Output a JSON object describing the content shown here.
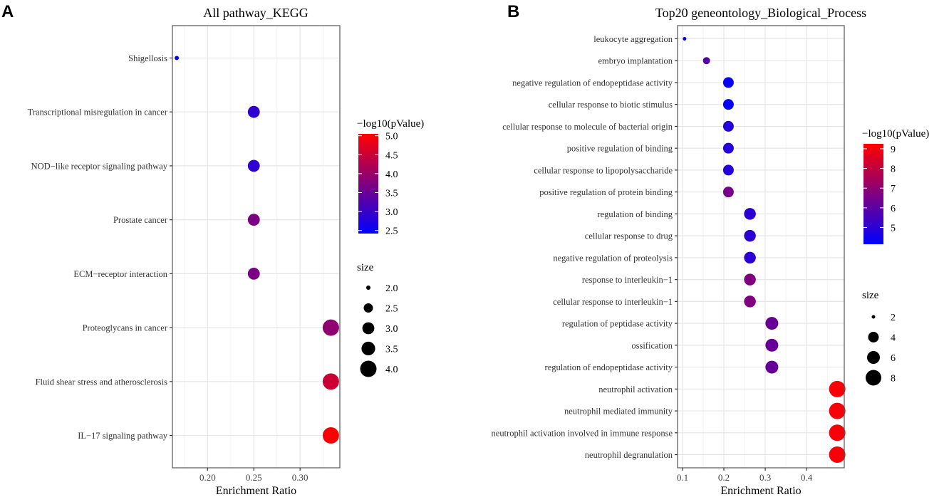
{
  "chart_data": [
    {
      "panel_label": "A",
      "type": "scatter",
      "title": "All pathway_KEGG",
      "xlabel": "Enrichment Ratio",
      "ylabel": "",
      "xlim": [
        0.162,
        0.343
      ],
      "xticks": [
        0.2,
        0.25,
        0.3
      ],
      "xtick_labels": [
        "0.20",
        "0.25",
        "0.30"
      ],
      "grid": true,
      "categories": [
        "Shigellosis",
        "Transcriptional misregulation in cancer",
        "NOD−like receptor signaling pathway",
        "Prostate cancer",
        "ECM−receptor interaction",
        "Proteoglycans in cancer",
        "Fluid shear stress and atherosclerosis",
        "IL−17 signaling pathway"
      ],
      "x": [
        0.1667,
        0.25,
        0.25,
        0.25,
        0.25,
        0.3333,
        0.3333,
        0.3333
      ],
      "size": [
        2,
        3,
        3,
        3,
        3,
        4,
        4,
        4
      ],
      "color_value": [
        2.45,
        2.9,
        2.9,
        3.7,
        3.7,
        3.9,
        4.5,
        5.0
      ],
      "color_legend": {
        "title": "−log10(pValue)",
        "range": [
          2.42,
          5.05
        ],
        "ticks": [
          5.0,
          4.5,
          4.0,
          3.5,
          3.0,
          2.5
        ],
        "tick_labels": [
          "5.0",
          "4.5",
          "4.0",
          "3.5",
          "3.0",
          "2.5"
        ],
        "low": "#0000ff",
        "high": "#ff0000"
      },
      "size_legend": {
        "title": "size",
        "values": [
          2.0,
          2.5,
          3.0,
          3.5,
          4.0
        ],
        "labels": [
          "2.0",
          "2.5",
          "3.0",
          "3.5",
          "4.0"
        ]
      },
      "legend_placement": "right"
    },
    {
      "panel_label": "B",
      "type": "scatter",
      "title": "Top20 geneontology_Biological_Process",
      "xlabel": "Enrichment Ratio",
      "ylabel": "",
      "xlim": [
        0.088,
        0.491
      ],
      "xticks": [
        0.1,
        0.2,
        0.3,
        0.4
      ],
      "xtick_labels": [
        "0.1",
        "0.2",
        "0.3",
        "0.4"
      ],
      "grid": true,
      "categories": [
        "leukocyte aggregation",
        "embryo implantation",
        "negative regulation of endopeptidase activity",
        "cellular response to biotic stimulus",
        "cellular response to molecule of bacterial origin",
        "positive regulation of binding",
        "cellular response to lipopolysaccharide",
        "positive regulation of protein binding",
        "regulation of binding",
        "cellular response to drug",
        "negative regulation of proteolysis",
        "response to interleukin−1",
        "cellular response to interleukin−1",
        "regulation of peptidase activity",
        "ossification",
        "regulation of endopeptidase activity",
        "neutrophil activation",
        "neutrophil mediated immunity",
        "neutrophil activation involved in immune response",
        "neutrophil degranulation"
      ],
      "x": [
        0.105,
        0.158,
        0.211,
        0.211,
        0.211,
        0.211,
        0.211,
        0.211,
        0.263,
        0.263,
        0.263,
        0.263,
        0.263,
        0.316,
        0.316,
        0.316,
        0.474,
        0.474,
        0.474,
        0.474
      ],
      "size": [
        2,
        3,
        4,
        4,
        4,
        4,
        4,
        4,
        5,
        5,
        5,
        5,
        5,
        6,
        6,
        6,
        9,
        9,
        9,
        9
      ],
      "color_value": [
        4.3,
        5.8,
        4.3,
        4.3,
        4.9,
        4.9,
        4.9,
        6.5,
        5.0,
        5.0,
        5.0,
        6.7,
        6.7,
        6.2,
        6.2,
        6.2,
        9.1,
        9.1,
        9.1,
        9.1
      ],
      "color_legend": {
        "title": "−log10(pValue)",
        "range": [
          4.15,
          9.25
        ],
        "ticks": [
          9,
          8,
          7,
          6,
          5
        ],
        "tick_labels": [
          "9",
          "8",
          "7",
          "6",
          "5"
        ],
        "low": "#0000ff",
        "high": "#ff0000"
      },
      "size_legend": {
        "title": "size",
        "values": [
          2,
          4,
          6,
          8
        ],
        "labels": [
          "2",
          "4",
          "6",
          "8"
        ]
      },
      "legend_placement": "right"
    }
  ]
}
